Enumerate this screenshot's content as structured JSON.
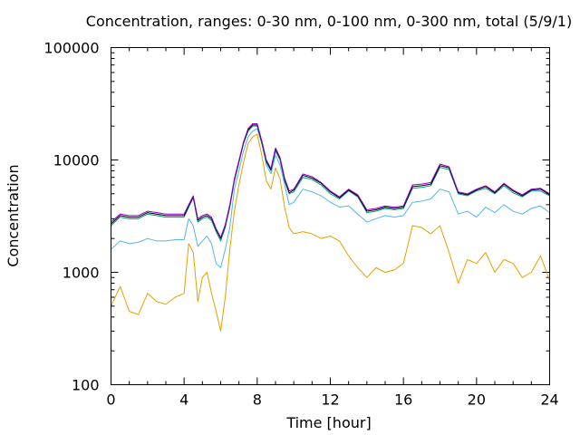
{
  "chart_data": {
    "type": "line",
    "title": "Concentration, ranges: 0-30 nm, 0-100 nm, 0-300 nm, total (5/9/1)",
    "xlabel": "Time [hour]",
    "ylabel": "Concentration",
    "xlim": [
      0,
      24
    ],
    "ylim": [
      100,
      100000
    ],
    "yscale": "log",
    "grid": false,
    "x_ticks": [
      0,
      4,
      8,
      12,
      16,
      20,
      24
    ],
    "x_tick_labels": [
      "0",
      "4",
      "8",
      "12",
      "16",
      "20",
      "24"
    ],
    "y_ticks": [
      100,
      1000,
      10000,
      100000
    ],
    "y_tick_labels": [
      "100",
      "1000",
      "10000",
      "100000"
    ],
    "x": [
      0,
      0.5,
      1,
      1.5,
      2,
      2.5,
      3,
      3.5,
      4,
      4.25,
      4.5,
      4.75,
      5,
      5.25,
      5.5,
      5.75,
      6,
      6.25,
      6.5,
      6.75,
      7,
      7.25,
      7.5,
      7.75,
      8,
      8.25,
      8.5,
      8.75,
      9,
      9.25,
      9.5,
      9.75,
      10,
      10.5,
      11,
      11.5,
      12,
      12.5,
      13,
      13.5,
      14,
      14.5,
      15,
      15.5,
      16,
      16.5,
      17,
      17.5,
      18,
      18.5,
      19,
      19.5,
      20,
      20.5,
      21,
      21.5,
      22,
      22.5,
      23,
      23.5,
      24
    ],
    "series": [
      {
        "color": "#e69f00",
        "values": [
          500,
          750,
          450,
          420,
          650,
          550,
          520,
          600,
          650,
          1800,
          1500,
          550,
          900,
          1000,
          650,
          450,
          300,
          600,
          1600,
          3500,
          6000,
          9500,
          14000,
          16000,
          17000,
          11000,
          6500,
          5500,
          8500,
          6800,
          3800,
          2500,
          2200,
          2300,
          2200,
          2000,
          2100,
          1900,
          1400,
          1100,
          900,
          1100,
          1000,
          1050,
          1200,
          2600,
          2500,
          2200,
          2600,
          1500,
          800,
          1300,
          1200,
          1500,
          1000,
          1300,
          1200,
          900,
          1000,
          1400,
          850
        ]
      },
      {
        "color": "#56b4e9",
        "values": [
          1600,
          1900,
          1800,
          1850,
          2000,
          1900,
          1900,
          1950,
          1950,
          3000,
          2600,
          1700,
          1900,
          2100,
          1800,
          1200,
          1100,
          1600,
          2500,
          5500,
          8000,
          12000,
          16000,
          18000,
          19000,
          14000,
          9000,
          7500,
          11000,
          9000,
          6000,
          4000,
          4200,
          5500,
          5200,
          4800,
          4200,
          3800,
          3900,
          3300,
          2800,
          3000,
          3200,
          3100,
          3200,
          4200,
          4300,
          4500,
          5500,
          5200,
          3300,
          3500,
          3100,
          3800,
          3400,
          4000,
          3500,
          3300,
          3700,
          3900,
          3400
        ]
      },
      {
        "color": "#009e73",
        "values": [
          2600,
          3100,
          3000,
          3000,
          3300,
          3200,
          3100,
          3100,
          3100,
          3800,
          4600,
          2800,
          3000,
          3100,
          2900,
          2300,
          1900,
          2500,
          3800,
          6500,
          9500,
          14000,
          18000,
          20000,
          20000,
          14000,
          9500,
          8000,
          12000,
          10000,
          6500,
          5000,
          5200,
          7000,
          6700,
          6000,
          5000,
          4500,
          5300,
          4700,
          3400,
          3500,
          3700,
          3600,
          3700,
          5600,
          5700,
          5900,
          8600,
          8200,
          5000,
          4800,
          5300,
          5600,
          5000,
          5900,
          5100,
          4700,
          5300,
          5300,
          4800
        ]
      },
      {
        "color": "#000000",
        "values": [
          2700,
          3200,
          3100,
          3100,
          3400,
          3300,
          3200,
          3200,
          3200,
          3900,
          4700,
          2900,
          3100,
          3200,
          3000,
          2400,
          2000,
          2600,
          3900,
          6700,
          9700,
          14200,
          18500,
          20500,
          20500,
          14500,
          9800,
          8200,
          12500,
          10300,
          6700,
          5100,
          5400,
          7300,
          6900,
          6200,
          5200,
          4600,
          5400,
          4800,
          3500,
          3600,
          3800,
          3700,
          3800,
          5800,
          5900,
          6100,
          8900,
          8500,
          5100,
          4900,
          5400,
          5800,
          5100,
          6100,
          5300,
          4800,
          5400,
          5500,
          4900
        ]
      },
      {
        "color": "#9400d3",
        "values": [
          2800,
          3300,
          3200,
          3200,
          3500,
          3400,
          3300,
          3300,
          3300,
          4000,
          4800,
          3000,
          3200,
          3300,
          3100,
          2450,
          2050,
          2650,
          4000,
          6800,
          9900,
          14500,
          19000,
          21000,
          21000,
          14800,
          10000,
          8400,
          12800,
          10500,
          6900,
          5300,
          5500,
          7500,
          7100,
          6300,
          5300,
          4700,
          5500,
          4900,
          3600,
          3700,
          3900,
          3800,
          3900,
          6000,
          6100,
          6300,
          9200,
          8700,
          5200,
          5000,
          5500,
          5900,
          5200,
          6200,
          5400,
          4900,
          5500,
          5600,
          5000
        ]
      }
    ]
  }
}
